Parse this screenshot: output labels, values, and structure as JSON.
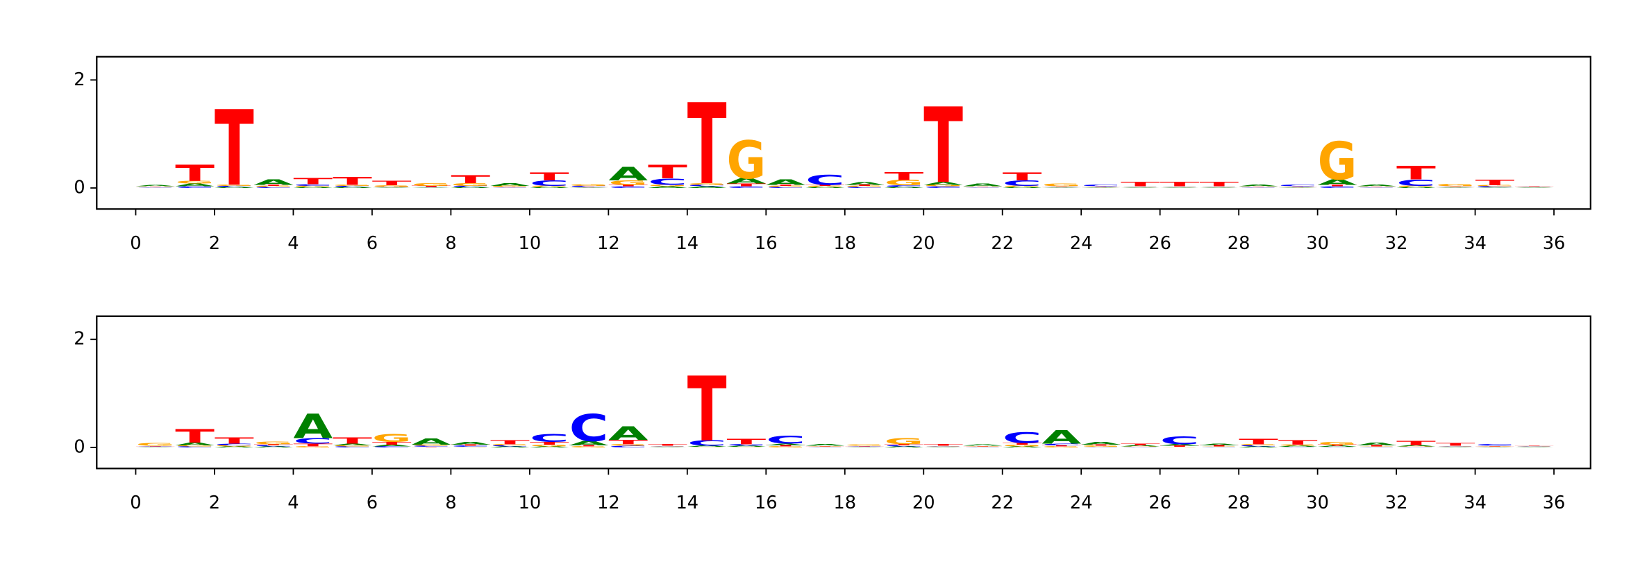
{
  "chart_data": [
    {
      "type": "logo",
      "x": [
        0,
        1,
        2,
        3,
        4,
        5,
        6,
        7,
        8,
        9,
        10,
        11,
        12,
        13,
        14,
        15,
        16,
        17,
        18,
        19,
        20,
        21,
        22,
        23,
        24,
        25,
        26,
        27,
        28,
        29,
        30,
        31,
        32,
        33,
        34,
        35
      ],
      "xlim": [
        -0.99,
        36.93
      ],
      "xticks": [
        0,
        2,
        4,
        6,
        8,
        10,
        12,
        14,
        16,
        18,
        20,
        22,
        24,
        26,
        28,
        30,
        32,
        34,
        36
      ],
      "ylim": [
        -0.39,
        2.43
      ],
      "yticks": [
        0,
        2
      ],
      "series": [
        {
          "name": "A",
          "color": "#008000",
          "values": [
            0.02,
            0.05,
            0.02,
            0.1,
            0.02,
            0.02,
            0.01,
            0.01,
            0.02,
            0.05,
            0.02,
            0.01,
            0.25,
            0.03,
            0.03,
            0.1,
            0.1,
            0.02,
            0.05,
            0.02,
            0.05,
            0.05,
            0.02,
            0.01,
            0.01,
            0.01,
            0.01,
            0.01,
            0.03,
            0.01,
            0.1,
            0.03,
            0.02,
            0.01,
            0.01,
            0.01
          ]
        },
        {
          "name": "C",
          "color": "#0000ff",
          "values": [
            0.01,
            0.03,
            0.02,
            0.02,
            0.03,
            0.02,
            0.01,
            0.01,
            0.02,
            0.01,
            0.1,
            0.02,
            0.03,
            0.12,
            0.03,
            0.03,
            0.02,
            0.18,
            0.02,
            0.03,
            0.03,
            0.01,
            0.1,
            0.01,
            0.03,
            0.01,
            0.01,
            0.01,
            0.01,
            0.03,
            0.03,
            0.01,
            0.12,
            0.01,
            0.02,
            0.01
          ]
        },
        {
          "name": "G",
          "color": "#ffa500",
          "values": [
            0.01,
            0.05,
            0.02,
            0.02,
            0.02,
            0.02,
            0.03,
            0.05,
            0.05,
            0.02,
            0.02,
            0.03,
            0.08,
            0.03,
            0.03,
            0.7,
            0.02,
            0.02,
            0.02,
            0.1,
            0.03,
            0.01,
            0.02,
            0.05,
            0.01,
            0.01,
            0.01,
            0.01,
            0.01,
            0.01,
            0.7,
            0.01,
            0.02,
            0.04,
            0.02,
            0.01
          ]
        },
        {
          "name": "T",
          "color": "#ff0000",
          "values": [
            0.01,
            0.3,
            1.4,
            0.02,
            0.12,
            0.15,
            0.08,
            0.02,
            0.15,
            0.01,
            0.15,
            0.01,
            0.03,
            0.25,
            1.5,
            0.05,
            0.02,
            0.02,
            0.02,
            0.15,
            1.4,
            0.01,
            0.15,
            0.01,
            0.01,
            0.08,
            0.08,
            0.08,
            0.01,
            0.01,
            0.03,
            0.01,
            0.25,
            0.01,
            0.1,
            0.01
          ]
        }
      ]
    },
    {
      "type": "logo",
      "x": [
        0,
        1,
        2,
        3,
        4,
        5,
        6,
        7,
        8,
        9,
        10,
        11,
        12,
        13,
        14,
        15,
        16,
        17,
        18,
        19,
        20,
        21,
        22,
        23,
        24,
        25,
        26,
        27,
        28,
        29,
        30,
        31,
        32,
        33,
        34,
        35
      ],
      "xlim": [
        -0.99,
        36.93
      ],
      "xticks": [
        0,
        2,
        4,
        6,
        8,
        10,
        12,
        14,
        16,
        18,
        20,
        22,
        24,
        26,
        28,
        30,
        32,
        34,
        36
      ],
      "ylim": [
        -0.39,
        2.43
      ],
      "yticks": [
        0,
        2
      ],
      "series": [
        {
          "name": "A",
          "color": "#008000",
          "values": [
            0.01,
            0.05,
            0.02,
            0.02,
            0.45,
            0.03,
            0.03,
            0.12,
            0.05,
            0.02,
            0.02,
            0.08,
            0.25,
            0.01,
            0.02,
            0.02,
            0.03,
            0.03,
            0.01,
            0.02,
            0.01,
            0.02,
            0.02,
            0.25,
            0.05,
            0.02,
            0.03,
            0.03,
            0.02,
            0.02,
            0.02,
            0.05,
            0.02,
            0.01,
            0.01,
            0.01
          ]
        },
        {
          "name": "C",
          "color": "#0000ff",
          "values": [
            0.01,
            0.02,
            0.03,
            0.02,
            0.1,
            0.02,
            0.02,
            0.02,
            0.02,
            0.02,
            0.15,
            0.5,
            0.03,
            0.01,
            0.1,
            0.03,
            0.15,
            0.01,
            0.01,
            0.02,
            0.01,
            0.01,
            0.2,
            0.03,
            0.01,
            0.01,
            0.15,
            0.01,
            0.02,
            0.01,
            0.01,
            0.01,
            0.01,
            0.01,
            0.03,
            0.01
          ]
        },
        {
          "name": "G",
          "color": "#ffa500",
          "values": [
            0.05,
            0.02,
            0.02,
            0.05,
            0.02,
            0.02,
            0.15,
            0.02,
            0.01,
            0.02,
            0.03,
            0.02,
            0.03,
            0.01,
            0.01,
            0.01,
            0.02,
            0.01,
            0.02,
            0.12,
            0.01,
            0.01,
            0.03,
            0.02,
            0.02,
            0.01,
            0.01,
            0.01,
            0.02,
            0.02,
            0.05,
            0.01,
            0.01,
            0.01,
            0.01,
            0.01
          ]
        },
        {
          "name": "T",
          "color": "#ff0000",
          "values": [
            0.01,
            0.25,
            0.12,
            0.02,
            0.05,
            0.12,
            0.05,
            0.01,
            0.02,
            0.07,
            0.05,
            0.02,
            0.08,
            0.03,
            1.2,
            0.1,
            0.02,
            0.01,
            0.01,
            0.02,
            0.03,
            0.01,
            0.03,
            0.02,
            0.02,
            0.03,
            0.02,
            0.02,
            0.1,
            0.08,
            0.02,
            0.02,
            0.08,
            0.05,
            0.01,
            0.01
          ]
        }
      ]
    }
  ]
}
